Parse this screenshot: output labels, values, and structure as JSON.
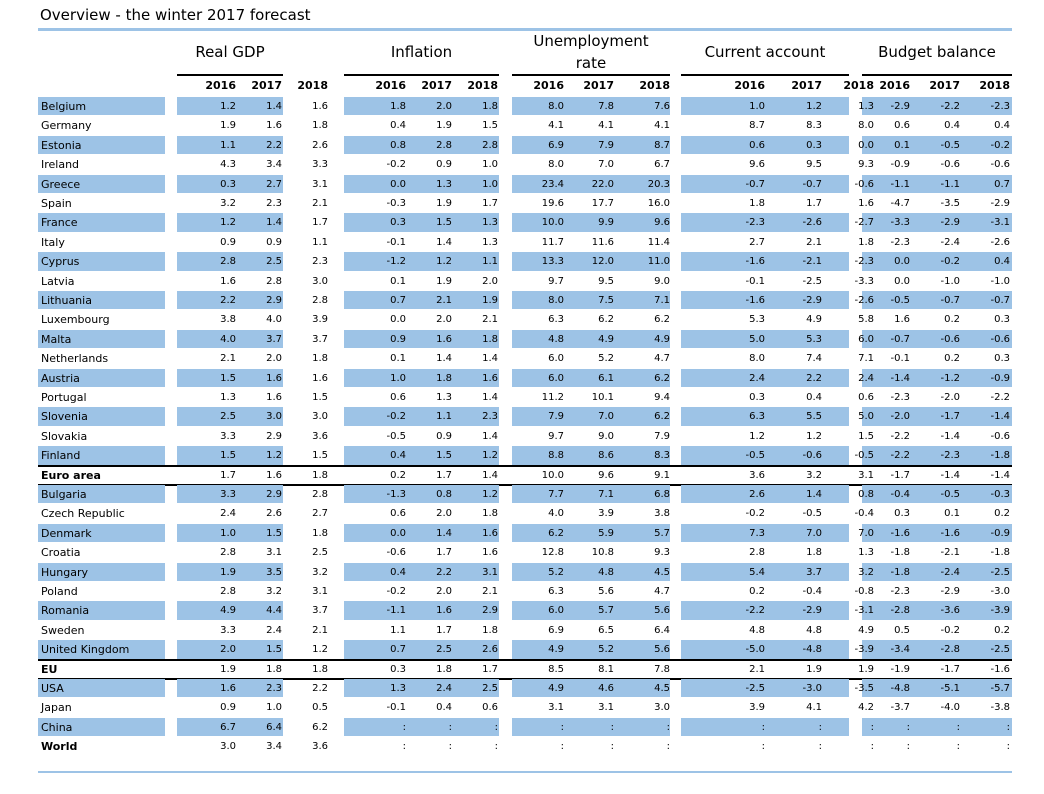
{
  "title": "Overview - the winter 2017 forecast",
  "groups": [
    "Real GDP",
    "Inflation",
    "Unemployment\nrate",
    "Current account",
    "Budget balance"
  ],
  "years": [
    "2016",
    "2017",
    "2018"
  ],
  "colors": {
    "band": "#9dc3e6",
    "rule": "#000000"
  },
  "rows": [
    {
      "label": "Belgium",
      "shaded": true,
      "bold": false,
      "values": [
        "1.2",
        "1.4",
        "1.6",
        "1.8",
        "2.0",
        "1.8",
        "8.0",
        "7.8",
        "7.6",
        "1.0",
        "1.2",
        "1.3",
        "-2.9",
        "-2.2",
        "-2.3"
      ]
    },
    {
      "label": "Germany",
      "shaded": false,
      "bold": false,
      "values": [
        "1.9",
        "1.6",
        "1.8",
        "0.4",
        "1.9",
        "1.5",
        "4.1",
        "4.1",
        "4.1",
        "8.7",
        "8.3",
        "8.0",
        "0.6",
        "0.4",
        "0.4"
      ]
    },
    {
      "label": "Estonia",
      "shaded": true,
      "bold": false,
      "values": [
        "1.1",
        "2.2",
        "2.6",
        "0.8",
        "2.8",
        "2.8",
        "6.9",
        "7.9",
        "8.7",
        "0.6",
        "0.3",
        "0.0",
        "0.1",
        "-0.5",
        "-0.2"
      ]
    },
    {
      "label": "Ireland",
      "shaded": false,
      "bold": false,
      "values": [
        "4.3",
        "3.4",
        "3.3",
        "-0.2",
        "0.9",
        "1.0",
        "8.0",
        "7.0",
        "6.7",
        "9.6",
        "9.5",
        "9.3",
        "-0.9",
        "-0.6",
        "-0.6"
      ]
    },
    {
      "label": "Greece",
      "shaded": true,
      "bold": false,
      "values": [
        "0.3",
        "2.7",
        "3.1",
        "0.0",
        "1.3",
        "1.0",
        "23.4",
        "22.0",
        "20.3",
        "-0.7",
        "-0.7",
        "-0.6",
        "-1.1",
        "-1.1",
        "0.7"
      ]
    },
    {
      "label": "Spain",
      "shaded": false,
      "bold": false,
      "values": [
        "3.2",
        "2.3",
        "2.1",
        "-0.3",
        "1.9",
        "1.7",
        "19.6",
        "17.7",
        "16.0",
        "1.8",
        "1.7",
        "1.6",
        "-4.7",
        "-3.5",
        "-2.9"
      ]
    },
    {
      "label": "France",
      "shaded": true,
      "bold": false,
      "values": [
        "1.2",
        "1.4",
        "1.7",
        "0.3",
        "1.5",
        "1.3",
        "10.0",
        "9.9",
        "9.6",
        "-2.3",
        "-2.6",
        "-2.7",
        "-3.3",
        "-2.9",
        "-3.1"
      ]
    },
    {
      "label": "Italy",
      "shaded": false,
      "bold": false,
      "values": [
        "0.9",
        "0.9",
        "1.1",
        "-0.1",
        "1.4",
        "1.3",
        "11.7",
        "11.6",
        "11.4",
        "2.7",
        "2.1",
        "1.8",
        "-2.3",
        "-2.4",
        "-2.6"
      ]
    },
    {
      "label": "Cyprus",
      "shaded": true,
      "bold": false,
      "values": [
        "2.8",
        "2.5",
        "2.3",
        "-1.2",
        "1.2",
        "1.1",
        "13.3",
        "12.0",
        "11.0",
        "-1.6",
        "-2.1",
        "-2.3",
        "0.0",
        "-0.2",
        "0.4"
      ]
    },
    {
      "label": "Latvia",
      "shaded": false,
      "bold": false,
      "values": [
        "1.6",
        "2.8",
        "3.0",
        "0.1",
        "1.9",
        "2.0",
        "9.7",
        "9.5",
        "9.0",
        "-0.1",
        "-2.5",
        "-3.3",
        "0.0",
        "-1.0",
        "-1.0"
      ]
    },
    {
      "label": "Lithuania",
      "shaded": true,
      "bold": false,
      "values": [
        "2.2",
        "2.9",
        "2.8",
        "0.7",
        "2.1",
        "1.9",
        "8.0",
        "7.5",
        "7.1",
        "-1.6",
        "-2.9",
        "-2.6",
        "-0.5",
        "-0.7",
        "-0.7"
      ]
    },
    {
      "label": "Luxembourg",
      "shaded": false,
      "bold": false,
      "values": [
        "3.8",
        "4.0",
        "3.9",
        "0.0",
        "2.0",
        "2.1",
        "6.3",
        "6.2",
        "6.2",
        "5.3",
        "4.9",
        "5.8",
        "1.6",
        "0.2",
        "0.3"
      ]
    },
    {
      "label": "Malta",
      "shaded": true,
      "bold": false,
      "values": [
        "4.0",
        "3.7",
        "3.7",
        "0.9",
        "1.6",
        "1.8",
        "4.8",
        "4.9",
        "4.9",
        "5.0",
        "5.3",
        "6.0",
        "-0.7",
        "-0.6",
        "-0.6"
      ]
    },
    {
      "label": "Netherlands",
      "shaded": false,
      "bold": false,
      "values": [
        "2.1",
        "2.0",
        "1.8",
        "0.1",
        "1.4",
        "1.4",
        "6.0",
        "5.2",
        "4.7",
        "8.0",
        "7.4",
        "7.1",
        "-0.1",
        "0.2",
        "0.3"
      ]
    },
    {
      "label": "Austria",
      "shaded": true,
      "bold": false,
      "values": [
        "1.5",
        "1.6",
        "1.6",
        "1.0",
        "1.8",
        "1.6",
        "6.0",
        "6.1",
        "6.2",
        "2.4",
        "2.2",
        "2.4",
        "-1.4",
        "-1.2",
        "-0.9"
      ]
    },
    {
      "label": "Portugal",
      "shaded": false,
      "bold": false,
      "values": [
        "1.3",
        "1.6",
        "1.5",
        "0.6",
        "1.3",
        "1.4",
        "11.2",
        "10.1",
        "9.4",
        "0.3",
        "0.4",
        "0.6",
        "-2.3",
        "-2.0",
        "-2.2"
      ]
    },
    {
      "label": "Slovenia",
      "shaded": true,
      "bold": false,
      "values": [
        "2.5",
        "3.0",
        "3.0",
        "-0.2",
        "1.1",
        "2.3",
        "7.9",
        "7.0",
        "6.2",
        "6.3",
        "5.5",
        "5.0",
        "-2.0",
        "-1.7",
        "-1.4"
      ]
    },
    {
      "label": "Slovakia",
      "shaded": false,
      "bold": false,
      "values": [
        "3.3",
        "2.9",
        "3.6",
        "-0.5",
        "0.9",
        "1.4",
        "9.7",
        "9.0",
        "7.9",
        "1.2",
        "1.2",
        "1.5",
        "-2.2",
        "-1.4",
        "-0.6"
      ]
    },
    {
      "label": "Finland",
      "shaded": true,
      "bold": false,
      "values": [
        "1.5",
        "1.2",
        "1.5",
        "0.4",
        "1.5",
        "1.2",
        "8.8",
        "8.6",
        "8.3",
        "-0.5",
        "-0.6",
        "-0.5",
        "-2.2",
        "-2.3",
        "-1.8"
      ]
    },
    {
      "label": "Euro area",
      "shaded": false,
      "bold": true,
      "values": [
        "1.7",
        "1.6",
        "1.8",
        "0.2",
        "1.7",
        "1.4",
        "10.0",
        "9.6",
        "9.1",
        "3.6",
        "3.2",
        "3.1",
        "-1.7",
        "-1.4",
        "-1.4"
      ]
    },
    {
      "label": "Bulgaria",
      "shaded": true,
      "bold": false,
      "values": [
        "3.3",
        "2.9",
        "2.8",
        "-1.3",
        "0.8",
        "1.2",
        "7.7",
        "7.1",
        "6.8",
        "2.6",
        "1.4",
        "0.8",
        "-0.4",
        "-0.5",
        "-0.3"
      ]
    },
    {
      "label": "Czech Republic",
      "shaded": false,
      "bold": false,
      "values": [
        "2.4",
        "2.6",
        "2.7",
        "0.6",
        "2.0",
        "1.8",
        "4.0",
        "3.9",
        "3.8",
        "-0.2",
        "-0.5",
        "-0.4",
        "0.3",
        "0.1",
        "0.2"
      ]
    },
    {
      "label": "Denmark",
      "shaded": true,
      "bold": false,
      "values": [
        "1.0",
        "1.5",
        "1.8",
        "0.0",
        "1.4",
        "1.6",
        "6.2",
        "5.9",
        "5.7",
        "7.3",
        "7.0",
        "7.0",
        "-1.6",
        "-1.6",
        "-0.9"
      ]
    },
    {
      "label": "Croatia",
      "shaded": false,
      "bold": false,
      "values": [
        "2.8",
        "3.1",
        "2.5",
        "-0.6",
        "1.7",
        "1.6",
        "12.8",
        "10.8",
        "9.3",
        "2.8",
        "1.8",
        "1.3",
        "-1.8",
        "-2.1",
        "-1.8"
      ]
    },
    {
      "label": "Hungary",
      "shaded": true,
      "bold": false,
      "values": [
        "1.9",
        "3.5",
        "3.2",
        "0.4",
        "2.2",
        "3.1",
        "5.2",
        "4.8",
        "4.5",
        "5.4",
        "3.7",
        "3.2",
        "-1.8",
        "-2.4",
        "-2.5"
      ]
    },
    {
      "label": "Poland",
      "shaded": false,
      "bold": false,
      "values": [
        "2.8",
        "3.2",
        "3.1",
        "-0.2",
        "2.0",
        "2.1",
        "6.3",
        "5.6",
        "4.7",
        "0.2",
        "-0.4",
        "-0.8",
        "-2.3",
        "-2.9",
        "-3.0"
      ]
    },
    {
      "label": "Romania",
      "shaded": true,
      "bold": false,
      "values": [
        "4.9",
        "4.4",
        "3.7",
        "-1.1",
        "1.6",
        "2.9",
        "6.0",
        "5.7",
        "5.6",
        "-2.2",
        "-2.9",
        "-3.1",
        "-2.8",
        "-3.6",
        "-3.9"
      ]
    },
    {
      "label": "Sweden",
      "shaded": false,
      "bold": false,
      "values": [
        "3.3",
        "2.4",
        "2.1",
        "1.1",
        "1.7",
        "1.8",
        "6.9",
        "6.5",
        "6.4",
        "4.8",
        "4.8",
        "4.9",
        "0.5",
        "-0.2",
        "0.2"
      ]
    },
    {
      "label": "United Kingdom",
      "shaded": true,
      "bold": false,
      "values": [
        "2.0",
        "1.5",
        "1.2",
        "0.7",
        "2.5",
        "2.6",
        "4.9",
        "5.2",
        "5.6",
        "-5.0",
        "-4.8",
        "-3.9",
        "-3.4",
        "-2.8",
        "-2.5"
      ]
    },
    {
      "label": "EU",
      "shaded": false,
      "bold": true,
      "values": [
        "1.9",
        "1.8",
        "1.8",
        "0.3",
        "1.8",
        "1.7",
        "8.5",
        "8.1",
        "7.8",
        "2.1",
        "1.9",
        "1.9",
        "-1.9",
        "-1.7",
        "-1.6"
      ]
    },
    {
      "label": "USA",
      "shaded": true,
      "bold": false,
      "values": [
        "1.6",
        "2.3",
        "2.2",
        "1.3",
        "2.4",
        "2.5",
        "4.9",
        "4.6",
        "4.5",
        "-2.5",
        "-3.0",
        "-3.5",
        "-4.8",
        "-5.1",
        "-5.7"
      ]
    },
    {
      "label": "Japan",
      "shaded": false,
      "bold": false,
      "values": [
        "0.9",
        "1.0",
        "0.5",
        "-0.1",
        "0.4",
        "0.6",
        "3.1",
        "3.1",
        "3.0",
        "3.9",
        "4.1",
        "4.2",
        "-3.7",
        "-4.0",
        "-3.8"
      ]
    },
    {
      "label": "China",
      "shaded": true,
      "bold": false,
      "values": [
        "6.7",
        "6.4",
        "6.2",
        ":",
        ":",
        ":",
        ":",
        ":",
        ":",
        ":",
        ":",
        ":",
        ":",
        ":",
        ":"
      ]
    },
    {
      "label": "World",
      "shaded": false,
      "bold": true,
      "values": [
        "3.0",
        "3.4",
        "3.6",
        ":",
        ":",
        ":",
        ":",
        ":",
        ":",
        ":",
        ":",
        ":",
        ":",
        ":",
        ":"
      ]
    }
  ]
}
